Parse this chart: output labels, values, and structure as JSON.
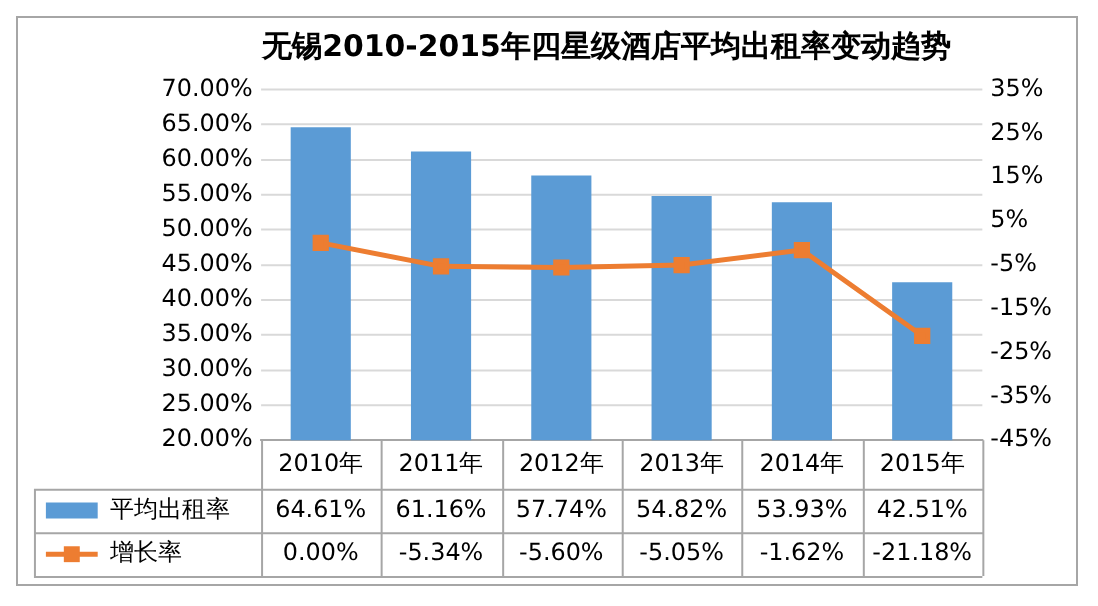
{
  "chart_data": {
    "type": "bar",
    "title": "无锡2010-2015年四星级酒店平均出租率变动趋势",
    "categories": [
      "2010年",
      "2011年",
      "2012年",
      "2013年",
      "2014年",
      "2015年"
    ],
    "series": [
      {
        "name": "平均出租率",
        "color": "#5b9bd5",
        "values": [
          64.61,
          61.16,
          57.74,
          54.82,
          53.93,
          42.51
        ],
        "value_labels": [
          "64.61%",
          "61.16%",
          "57.74%",
          "54.82%",
          "53.93%",
          "42.51%"
        ]
      },
      {
        "name": "增长率",
        "type": "line",
        "axis": "y2",
        "color": "#ed7d31",
        "values": [
          0,
          -5.34,
          -5.6,
          -5.05,
          -1.62,
          -21.18
        ],
        "value_labels": [
          "0.00%",
          "-5.34%",
          "-5.60%",
          "-5.05%",
          "-1.62%",
          "-21.18%"
        ]
      }
    ],
    "ylim": [
      20,
      70
    ],
    "yticks": [
      {
        "value": 20,
        "label": "20.00%"
      },
      {
        "value": 25,
        "label": "25.00%"
      },
      {
        "value": 30,
        "label": "30.00%"
      },
      {
        "value": 35,
        "label": "35.00%"
      },
      {
        "value": 40,
        "label": "40.00%"
      },
      {
        "value": 45,
        "label": "45.00%"
      },
      {
        "value": 50,
        "label": "50.00%"
      },
      {
        "value": 55,
        "label": "55.00%"
      },
      {
        "value": 60,
        "label": "60.00%"
      },
      {
        "value": 65,
        "label": "65.00%"
      },
      {
        "value": 70,
        "label": "70.00%"
      }
    ],
    "y2lim": [
      -45,
      35
    ],
    "y2ticks": [
      {
        "value": -45,
        "label": "-45%"
      },
      {
        "value": -35,
        "label": "-35%"
      },
      {
        "value": -25,
        "label": "-25%"
      },
      {
        "value": -15,
        "label": "-15%"
      },
      {
        "value": -5,
        "label": "-5%"
      },
      {
        "value": 5,
        "label": "5%"
      },
      {
        "value": 15,
        "label": "15%"
      },
      {
        "value": 25,
        "label": "25%"
      },
      {
        "value": 35,
        "label": "35%"
      }
    ],
    "grid": "y",
    "legend": "bottom",
    "marker": "square"
  }
}
